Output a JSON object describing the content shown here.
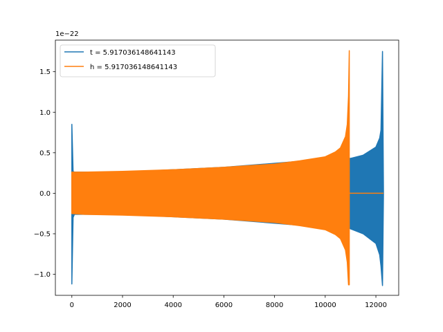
{
  "chart_data": {
    "type": "line",
    "offset_text": "1e−22",
    "xlim": [
      -650,
      12900
    ],
    "ylim": [
      -1.26,
      1.89
    ],
    "x_ticks": [
      0,
      2000,
      4000,
      6000,
      8000,
      10000,
      12000
    ],
    "x_tick_labels": [
      "0",
      "2000",
      "4000",
      "6000",
      "8000",
      "10000",
      "12000"
    ],
    "y_ticks": [
      -1.0,
      -0.5,
      0.0,
      0.5,
      1.0,
      1.5
    ],
    "y_tick_labels": [
      "−1.0",
      "−0.5",
      "0.0",
      "0.5",
      "1.0",
      "1.5"
    ],
    "grid": false,
    "legend_position": "upper-left",
    "series": [
      {
        "name": "t = 5.917036148641143",
        "color": "#1f77b4",
        "envelope": {
          "x": [
            0,
            50,
            100,
            2000,
            4000,
            6000,
            8000,
            10000,
            10900,
            10950,
            11000,
            11500,
            12000,
            12150,
            12200,
            12260,
            12300
          ],
          "upper": [
            0.85,
            0.27,
            0.26,
            0.26,
            0.29,
            0.32,
            0.37,
            0.42,
            0.42,
            0.43,
            0.43,
            0.47,
            0.57,
            0.68,
            0.78,
            1.75,
            0.0
          ],
          "lower": [
            -1.12,
            -0.3,
            -0.26,
            -0.26,
            -0.29,
            -0.32,
            -0.37,
            -0.42,
            -0.43,
            -0.43,
            -0.44,
            -0.5,
            -0.62,
            -0.76,
            -0.9,
            -1.14,
            0.0
          ]
        }
      },
      {
        "name": "h = 5.917036148641143",
        "color": "#ff7f0e",
        "envelope": {
          "x": [
            0,
            500,
            2000,
            4000,
            6000,
            8000,
            9000,
            10000,
            10400,
            10600,
            10800,
            10870,
            10920,
            10950
          ],
          "upper": [
            0.26,
            0.26,
            0.27,
            0.29,
            0.32,
            0.36,
            0.4,
            0.45,
            0.51,
            0.56,
            0.7,
            0.85,
            1.2,
            1.76
          ],
          "lower": [
            -0.25,
            -0.26,
            -0.27,
            -0.29,
            -0.32,
            -0.36,
            -0.4,
            -0.45,
            -0.51,
            -0.56,
            -0.7,
            -0.85,
            -1.13,
            -1.13
          ]
        },
        "flat_after": {
          "x": [
            10950,
            12300
          ],
          "y": 0.0
        }
      }
    ]
  }
}
